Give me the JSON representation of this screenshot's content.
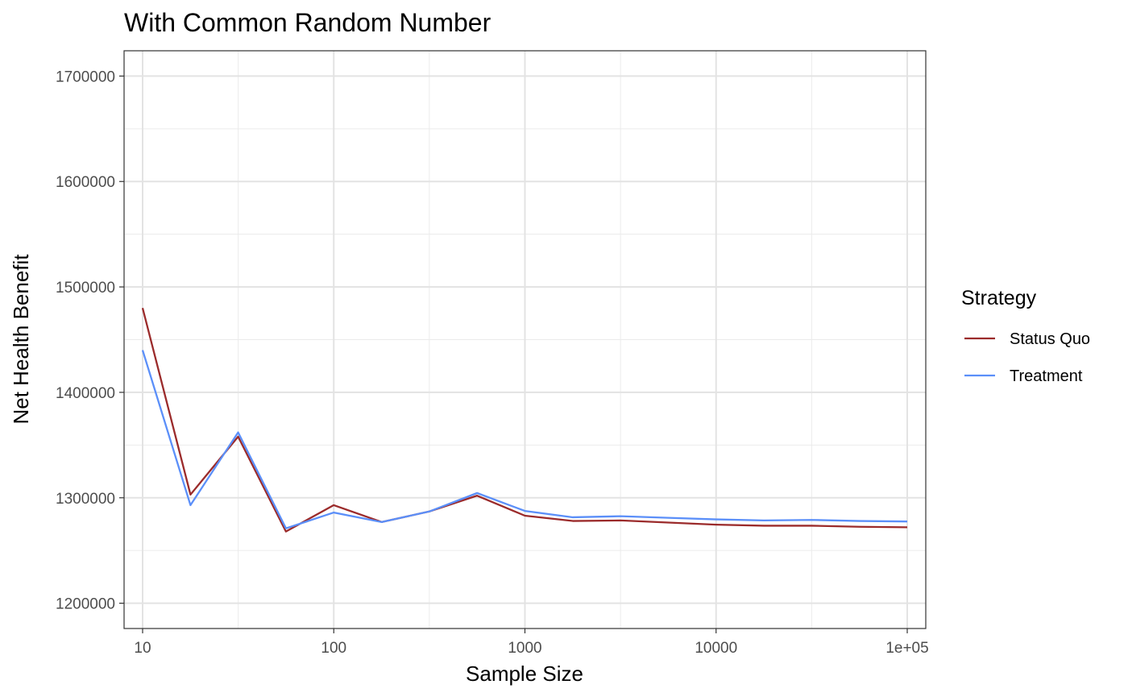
{
  "chart_data": {
    "type": "line",
    "title": "With Common Random Number",
    "xlabel": "Sample Size",
    "ylabel": "Net Health Benefit",
    "x_scale": "log10",
    "xlim": [
      8,
      125000
    ],
    "ylim": [
      1176000,
      1724000
    ],
    "x_ticks": [
      10,
      100,
      1000,
      10000,
      100000
    ],
    "x_tick_labels": [
      "10",
      "100",
      "1000",
      "10000",
      "1e+05"
    ],
    "y_ticks": [
      1200000,
      1300000,
      1400000,
      1500000,
      1600000,
      1700000
    ],
    "y_tick_labels": [
      "1200000",
      "1300000",
      "1400000",
      "1500000",
      "1600000",
      "1700000"
    ],
    "grid": true,
    "legend_position": "right",
    "legend_title": "Strategy",
    "x": [
      10,
      17.8,
      31.6,
      56.2,
      100,
      178,
      316,
      562,
      1000,
      1780,
      3160,
      5620,
      10000,
      17800,
      31600,
      56200,
      100000
    ],
    "series": [
      {
        "name": "Status Quo",
        "color": "#9b2b2b",
        "values": [
          1480000,
          1303000,
          1358000,
          1268000,
          1293000,
          1277000,
          1287000,
          1302000,
          1283000,
          1278000,
          1278500,
          1276500,
          1274500,
          1273500,
          1273500,
          1272500,
          1272000
        ]
      },
      {
        "name": "Treatment",
        "color": "#5b8ff9",
        "values": [
          1440000,
          1293000,
          1362000,
          1271000,
          1286000,
          1277000,
          1287000,
          1304500,
          1287500,
          1281500,
          1282500,
          1281000,
          1279500,
          1278500,
          1279000,
          1278000,
          1277500
        ]
      }
    ]
  }
}
